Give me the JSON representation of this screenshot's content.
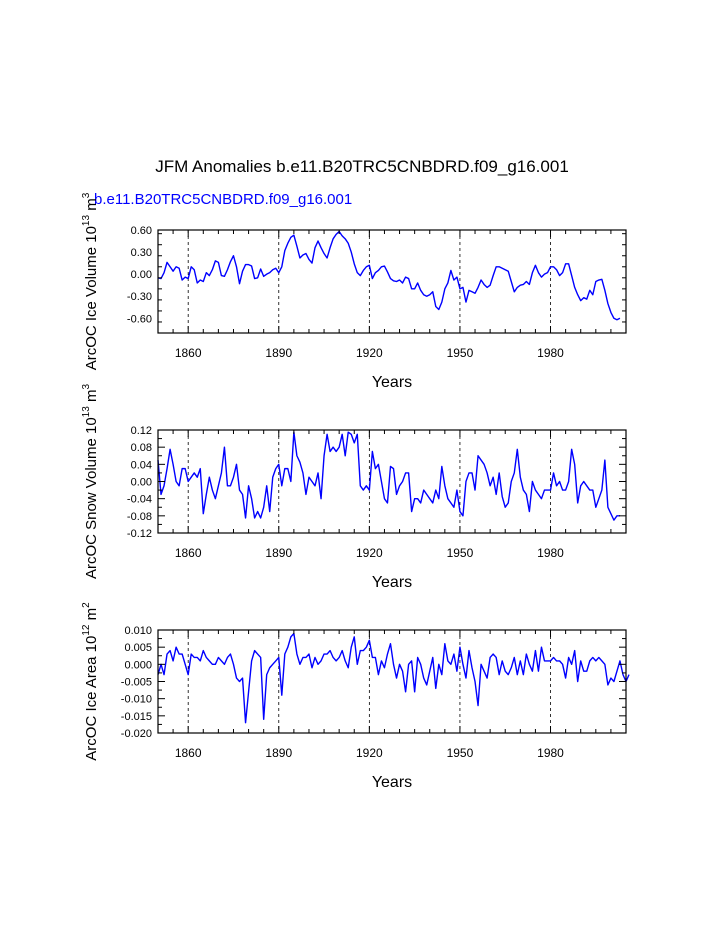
{
  "title": "JFM Anomalies b.e11.B20TRC5CNBDRD.f09_g16.001",
  "subtitle": "b.e11.B20TRC5CNBDRD.f09_g16.001",
  "line_color": "#0000ff",
  "chart_data": [
    {
      "type": "line",
      "name": "ice-volume",
      "ylabel_main": "ArcOC Ice Volume 10",
      "ylabel_exp": "13",
      "ylabel_unit": " m",
      "ylabel_unit_exp": "3",
      "xlabel": "Years",
      "xlim": [
        1850,
        2005
      ],
      "ylim": [
        -0.8,
        0.6
      ],
      "xticks": [
        1860,
        1890,
        1920,
        1950,
        1980
      ],
      "xtick_labels": [
        "1860",
        "1890",
        "1920",
        "1950",
        "1980"
      ],
      "yticks": [
        0.6,
        0.3,
        0.0,
        -0.3,
        -0.6
      ],
      "ytick_labels": [
        "0.60",
        "0.30",
        "0.00",
        "-0.30",
        "-0.60"
      ],
      "gridlines_x": [
        1860,
        1890,
        1920,
        1950,
        1980
      ],
      "series": [
        {
          "name": "b.e11.B20TRC5CNBDRD.f09_g16.001",
          "x_start": 1850,
          "x_step": 1,
          "values": [
            -0.05,
            -0.06,
            0.02,
            0.16,
            0.1,
            0.04,
            0.1,
            0.08,
            -0.08,
            -0.04,
            -0.06,
            0.1,
            0.06,
            -0.12,
            -0.08,
            -0.1,
            0.02,
            -0.02,
            0.06,
            0.18,
            0.16,
            -0.02,
            -0.03,
            0.06,
            0.17,
            0.25,
            0.1,
            -0.13,
            0.04,
            0.13,
            0.13,
            0.11,
            -0.06,
            -0.05,
            0.07,
            -0.03,
            0.0,
            0.02,
            0.06,
            0.08,
            0.02,
            0.1,
            0.32,
            0.42,
            0.5,
            0.53,
            0.38,
            0.22,
            0.26,
            0.28,
            0.2,
            0.15,
            0.36,
            0.45,
            0.36,
            0.28,
            0.22,
            0.36,
            0.48,
            0.54,
            0.58,
            0.52,
            0.48,
            0.42,
            0.3,
            0.14,
            0.02,
            -0.02,
            0.05,
            0.1,
            0.12,
            -0.06,
            0.02,
            0.05,
            0.1,
            0.11,
            0.03,
            -0.06,
            -0.09,
            -0.1,
            -0.08,
            -0.12,
            -0.04,
            -0.06,
            -0.2,
            -0.2,
            -0.12,
            -0.22,
            -0.28,
            -0.3,
            -0.28,
            -0.24,
            -0.44,
            -0.48,
            -0.38,
            -0.2,
            -0.12,
            0.05,
            -0.08,
            -0.04,
            -0.2,
            -0.18,
            -0.38,
            -0.22,
            -0.24,
            -0.26,
            -0.18,
            -0.08,
            -0.14,
            -0.18,
            -0.15,
            -0.02,
            0.1,
            0.1,
            0.08,
            0.06,
            0.04,
            -0.1,
            -0.24,
            -0.18,
            -0.15,
            -0.14,
            -0.1,
            -0.14,
            0.02,
            0.12,
            0.02,
            -0.04,
            0.0,
            0.02,
            0.1,
            0.1,
            0.06,
            -0.02,
            0.02,
            0.14,
            0.14,
            -0.02,
            -0.18,
            -0.28,
            -0.36,
            -0.32,
            -0.34,
            -0.22,
            -0.28,
            -0.1,
            -0.08,
            -0.07,
            -0.22,
            -0.4,
            -0.52,
            -0.6,
            -0.62,
            -0.6
          ]
        }
      ]
    },
    {
      "type": "line",
      "name": "snow-volume",
      "ylabel_main": "ArcOC Snow Volume 10",
      "ylabel_exp": "13",
      "ylabel_unit": " m",
      "ylabel_unit_exp": "3",
      "xlabel": "Years",
      "xlim": [
        1850,
        2005
      ],
      "ylim": [
        -0.12,
        0.12
      ],
      "xticks": [
        1860,
        1890,
        1920,
        1950,
        1980
      ],
      "xtick_labels": [
        "1860",
        "1890",
        "1920",
        "1950",
        "1980"
      ],
      "yticks": [
        0.12,
        0.08,
        0.04,
        0.0,
        -0.04,
        -0.08,
        -0.12
      ],
      "ytick_labels": [
        "0.12",
        "0.08",
        "0.04",
        "0.00",
        "-0.04",
        "-0.08",
        "-0.12"
      ],
      "gridlines_x": [
        1860,
        1890,
        1920,
        1950,
        1980
      ],
      "series": [
        {
          "name": "b.e11.B20TRC5CNBDRD.f09_g16.001",
          "x_start": 1850,
          "x_step": 1,
          "values": [
            0.05,
            -0.03,
            -0.01,
            0.03,
            0.075,
            0.04,
            0.0,
            -0.01,
            0.03,
            0.03,
            0.0,
            0.01,
            0.02,
            0.01,
            0.03,
            -0.075,
            -0.03,
            0.01,
            -0.02,
            -0.04,
            -0.01,
            0.02,
            0.08,
            -0.01,
            -0.01,
            0.01,
            0.04,
            -0.02,
            -0.03,
            -0.085,
            -0.01,
            -0.04,
            -0.085,
            -0.07,
            -0.085,
            -0.06,
            -0.01,
            -0.07,
            0.01,
            0.03,
            0.04,
            -0.01,
            0.03,
            0.03,
            0.0,
            0.115,
            0.06,
            0.045,
            0.02,
            -0.03,
            0.01,
            0.0,
            -0.01,
            0.02,
            -0.04,
            0.06,
            0.11,
            0.07,
            0.08,
            0.07,
            0.08,
            0.11,
            0.06,
            0.115,
            0.11,
            0.09,
            0.11,
            -0.01,
            -0.02,
            -0.01,
            -0.02,
            0.07,
            0.03,
            0.04,
            0.0,
            -0.04,
            -0.05,
            0.035,
            0.03,
            -0.03,
            -0.01,
            0.0,
            0.02,
            0.02,
            -0.07,
            -0.04,
            -0.04,
            -0.05,
            -0.02,
            -0.03,
            -0.04,
            -0.05,
            -0.02,
            -0.04,
            0.035,
            -0.01,
            -0.04,
            -0.05,
            -0.06,
            -0.02,
            -0.07,
            -0.08,
            0.0,
            0.02,
            0.02,
            -0.02,
            0.06,
            0.05,
            0.04,
            0.02,
            -0.01,
            0.01,
            -0.03,
            0.02,
            -0.035,
            -0.06,
            -0.05,
            0.0,
            0.02,
            0.075,
            0.01,
            -0.02,
            -0.03,
            -0.07,
            0.0,
            -0.02,
            -0.03,
            -0.04,
            -0.02,
            -0.02,
            -0.02,
            0.02,
            -0.01,
            0.0,
            -0.02,
            -0.02,
            0.0,
            0.075,
            0.04,
            -0.05,
            -0.01,
            0.0,
            -0.01,
            -0.02,
            -0.02,
            -0.06,
            -0.04,
            -0.02,
            0.05,
            -0.06,
            -0.075,
            -0.09,
            -0.08,
            -0.08
          ]
        }
      ]
    },
    {
      "type": "line",
      "name": "ice-area",
      "ylabel_main": "ArcOC Ice Area 10",
      "ylabel_exp": "12",
      "ylabel_unit": " m",
      "ylabel_unit_exp": "2",
      "xlabel": "Years",
      "xlim": [
        1850,
        2005
      ],
      "ylim": [
        -0.02,
        0.01
      ],
      "xticks": [
        1860,
        1890,
        1920,
        1950,
        1980
      ],
      "xtick_labels": [
        "1860",
        "1890",
        "1920",
        "1950",
        "1980"
      ],
      "yticks": [
        0.01,
        0.005,
        0.0,
        -0.005,
        -0.01,
        -0.015,
        -0.02
      ],
      "ytick_labels": [
        "0.010",
        "0.005",
        "0.000",
        "-0.005",
        "-0.010",
        "-0.015",
        "-0.020"
      ],
      "gridlines_x": [
        1860,
        1890,
        1920,
        1950,
        1980
      ],
      "series": [
        {
          "name": "b.e11.B20TRC5CNBDRD.f09_g16.001",
          "x_start": 1850,
          "x_step": 1,
          "values": [
            -0.003,
            0.0,
            -0.003,
            0.003,
            0.004,
            0.001,
            0.005,
            0.003,
            0.003,
            0.0,
            -0.003,
            0.003,
            0.002,
            0.002,
            0.001,
            0.004,
            0.002,
            0.001,
            0.0,
            0.0,
            0.002,
            0.001,
            0.0,
            0.002,
            0.003,
            0.0,
            -0.004,
            -0.005,
            -0.004,
            -0.017,
            -0.008,
            0.001,
            0.004,
            0.003,
            0.002,
            -0.016,
            -0.003,
            -0.001,
            0.0,
            0.001,
            0.002,
            -0.009,
            0.003,
            0.005,
            0.008,
            0.009,
            0.003,
            0.0,
            0.002,
            0.002,
            0.003,
            -0.001,
            0.002,
            0.0,
            0.001,
            0.003,
            0.003,
            0.004,
            0.002,
            0.001,
            0.002,
            0.004,
            0.001,
            -0.001,
            0.005,
            0.008,
            0.0,
            0.004,
            0.004,
            0.005,
            0.007,
            0.002,
            0.002,
            -0.003,
            0.001,
            -0.001,
            0.003,
            0.006,
            0.0,
            -0.004,
            0.0,
            -0.002,
            -0.008,
            0.0,
            0.001,
            -0.008,
            0.002,
            0.0,
            -0.004,
            -0.006,
            -0.002,
            0.002,
            -0.007,
            0.0,
            -0.003,
            0.006,
            0.001,
            0.0,
            0.003,
            -0.002,
            0.005,
            0.0,
            -0.004,
            0.004,
            -0.001,
            -0.005,
            -0.012,
            0.0,
            -0.002,
            -0.004,
            0.002,
            0.003,
            0.002,
            -0.003,
            0.001,
            -0.002,
            -0.003,
            -0.001,
            0.002,
            -0.003,
            0.001,
            -0.003,
            0.003,
            0.0,
            -0.002,
            0.004,
            -0.002,
            0.005,
            0.001,
            0.001,
            0.001,
            0.002,
            0.001,
            0.001,
            0.0,
            -0.004,
            0.002,
            0.0,
            0.004,
            -0.005,
            0.001,
            -0.002,
            -0.002,
            0.001,
            0.002,
            0.001,
            0.002,
            0.001,
            0.0,
            -0.006,
            -0.004,
            -0.005,
            -0.002,
            0.001,
            -0.003,
            -0.005,
            -0.003
          ]
        }
      ]
    }
  ]
}
